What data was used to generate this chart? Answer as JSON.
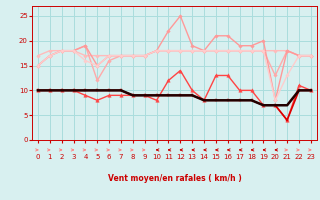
{
  "x": [
    0,
    1,
    2,
    3,
    4,
    5,
    6,
    7,
    8,
    9,
    10,
    11,
    12,
    13,
    14,
    15,
    16,
    17,
    18,
    19,
    20,
    21,
    22,
    23
  ],
  "lines": [
    {
      "y": [
        17,
        18,
        18,
        18,
        17,
        17,
        17,
        17,
        17,
        17,
        18,
        18,
        18,
        18,
        18,
        18,
        18,
        18,
        18,
        18,
        18,
        18,
        17,
        17
      ],
      "color": "#ffbbbb",
      "lw": 1.0,
      "marker": "D",
      "ms": 1.8,
      "zorder": 2
    },
    {
      "y": [
        15,
        17,
        18,
        18,
        19,
        12,
        16,
        17,
        17,
        17,
        18,
        18,
        18,
        18,
        18,
        18,
        18,
        18,
        18,
        18,
        13,
        18,
        17,
        17
      ],
      "color": "#ffaaaa",
      "lw": 1.0,
      "marker": "D",
      "ms": 1.8,
      "zorder": 2
    },
    {
      "y": [
        15,
        17,
        18,
        18,
        19,
        15,
        17,
        17,
        17,
        17,
        18,
        22,
        25,
        19,
        18,
        21,
        21,
        19,
        19,
        20,
        8,
        18,
        17,
        17
      ],
      "color": "#ff9999",
      "lw": 1.0,
      "marker": "D",
      "ms": 1.8,
      "zorder": 2
    },
    {
      "y": [
        15,
        17,
        18,
        18,
        16,
        15,
        17,
        17,
        17,
        17,
        18,
        18,
        18,
        18,
        18,
        18,
        18,
        18,
        18,
        18,
        8,
        13,
        17,
        17
      ],
      "color": "#ffcccc",
      "lw": 1.0,
      "marker": "D",
      "ms": 1.8,
      "zorder": 2
    },
    {
      "y": [
        10,
        10,
        10,
        10,
        9,
        8,
        9,
        9,
        9,
        9,
        8,
        12,
        14,
        10,
        8,
        13,
        13,
        10,
        10,
        7,
        7,
        4,
        11,
        10
      ],
      "color": "#ff4444",
      "lw": 1.0,
      "marker": "^",
      "ms": 2.5,
      "zorder": 3
    },
    {
      "y": [
        10,
        10,
        10,
        10,
        10,
        10,
        10,
        10,
        9,
        9,
        9,
        9,
        9,
        9,
        8,
        8,
        8,
        8,
        8,
        7,
        7,
        4,
        10,
        10
      ],
      "color": "#dd0000",
      "lw": 1.2,
      "marker": "s",
      "ms": 2.0,
      "zorder": 4
    },
    {
      "y": [
        10,
        10,
        10,
        10,
        10,
        10,
        10,
        10,
        9,
        9,
        9,
        9,
        9,
        9,
        8,
        8,
        8,
        8,
        8,
        7,
        7,
        7,
        10,
        10
      ],
      "color": "#220000",
      "lw": 1.8,
      "marker": null,
      "ms": 0,
      "zorder": 5
    }
  ],
  "xlabel": "Vent moyen/en rafales ( km/h )",
  "xlim": [
    -0.5,
    23.5
  ],
  "ylim": [
    0,
    27
  ],
  "yticks": [
    0,
    5,
    10,
    15,
    20,
    25
  ],
  "xticks": [
    0,
    1,
    2,
    3,
    4,
    5,
    6,
    7,
    8,
    9,
    10,
    11,
    12,
    13,
    14,
    15,
    16,
    17,
    18,
    19,
    20,
    21,
    22,
    23
  ],
  "bg_color": "#d8f0f0",
  "grid_color": "#aadddd",
  "text_color": "#cc0000",
  "arrow_directions": [
    1,
    1,
    1,
    1,
    1,
    1,
    1,
    1,
    1,
    1,
    -1,
    -1,
    -1,
    -1,
    -1,
    -1,
    -1,
    -1,
    -1,
    -1,
    -1,
    1,
    1,
    1
  ],
  "arrow_colors_right": "#ff8888",
  "arrow_colors_left": "#cc0000"
}
